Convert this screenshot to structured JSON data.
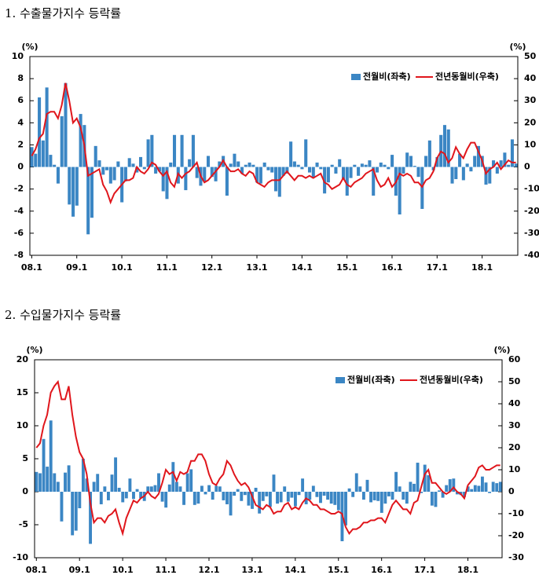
{
  "chart_data": [
    {
      "type": "bar_line",
      "title": "1. 수출물가지수 등락률",
      "y_label": "(%)",
      "y2_label": "(%)",
      "categories": [
        "08.1",
        null,
        null,
        null,
        null,
        null,
        null,
        null,
        null,
        null,
        null,
        null,
        "09.1",
        null,
        null,
        null,
        null,
        null,
        null,
        null,
        null,
        null,
        null,
        null,
        "10.1",
        null,
        null,
        null,
        null,
        null,
        null,
        null,
        null,
        null,
        null,
        null,
        "11.1",
        null,
        null,
        null,
        null,
        null,
        null,
        null,
        null,
        null,
        null,
        null,
        "12.1",
        null,
        null,
        null,
        null,
        null,
        null,
        null,
        null,
        null,
        null,
        null,
        "13.1",
        null,
        null,
        null,
        null,
        null,
        null,
        null,
        null,
        null,
        null,
        null,
        "14.1",
        null,
        null,
        null,
        null,
        null,
        null,
        null,
        null,
        null,
        null,
        null,
        "15.1",
        null,
        null,
        null,
        null,
        null,
        null,
        null,
        null,
        null,
        null,
        null,
        "16.1",
        null,
        null,
        null,
        null,
        null,
        null,
        null,
        null,
        null,
        null,
        null,
        "17.1",
        null,
        null,
        null,
        null,
        null,
        null,
        null,
        null,
        null,
        null,
        null,
        "18.1",
        null,
        null,
        null,
        null,
        null,
        null,
        null,
        null,
        null
      ],
      "series": [
        {
          "name": "전월비(좌축)",
          "color": "#3b86c4",
          "kind": "bar",
          "values": [
            1.8,
            1.2,
            6.3,
            2.4,
            7.2,
            1.1,
            0.2,
            -1.5,
            4.6,
            7.6,
            -3.4,
            -4.5,
            -3.5,
            4.8,
            3.8,
            -6.1,
            -4.6,
            1.9,
            0.6,
            -0.7,
            -0.3,
            -1.5,
            -1.2,
            0.5,
            -3.2,
            -1.3,
            0.8,
            0.3,
            -0.5,
            0.9,
            -0.2,
            2.5,
            2.9,
            -0.6,
            -0.4,
            -2.2,
            -2.9,
            0.4,
            2.9,
            -1.5,
            2.9,
            -2.1,
            0.7,
            2.9,
            -1.0,
            -1.7,
            -1.3,
            1.0,
            -0.9,
            -1.3,
            0.5,
            1.0,
            -2.6,
            0.3,
            1.2,
            0.5,
            -0.6,
            0.2,
            0.4,
            0.2,
            -1.4,
            -1.5,
            0.4,
            -0.3,
            -0.5,
            -2.2,
            -2.7,
            -0.8,
            -0.6,
            2.3,
            0.5,
            0.2,
            -0.2,
            2.5,
            -0.5,
            -1.0,
            0.4,
            -0.2,
            -2.4,
            -1.4,
            0.2,
            -0.6,
            0.7,
            -1.1,
            -2.6,
            -1.0,
            0.2,
            -0.8,
            0.3,
            0.2,
            0.6,
            -2.6,
            -0.5,
            0.4,
            0.2,
            -0.2,
            1.1,
            -2.6,
            -4.3,
            -0.6,
            1.3,
            1.0,
            0.1,
            -0.9,
            -3.8,
            1.0,
            2.4,
            -0.3,
            0.9,
            2.9,
            3.8,
            3.4,
            -1.5,
            -1.1,
            1.2,
            -1.2,
            0.3,
            -0.4,
            1.0,
            1.9,
            1.0,
            -1.6,
            -1.5,
            0.6,
            -0.6,
            0.6,
            1.3,
            0.2,
            2.5,
            0.3
          ]
        },
        {
          "name": "전년동월비(우축)",
          "color": "#e0161c",
          "kind": "line",
          "axis": "y2",
          "values": [
            5,
            8,
            13,
            15,
            24,
            25,
            25,
            22,
            28,
            38,
            30,
            20,
            22,
            18,
            10,
            -4,
            -3,
            -2,
            -1,
            -8,
            -11,
            -16,
            -12,
            -10,
            -8,
            -6,
            -6,
            -5,
            0,
            -2,
            -3,
            -1,
            2,
            1,
            -2,
            -4,
            -2,
            -7,
            -9,
            -3,
            -5,
            -3,
            -2,
            0,
            2,
            -4,
            -7,
            -6,
            -4,
            -2,
            0,
            3,
            0,
            -2,
            -2,
            -1,
            -3,
            -4,
            -2,
            -3,
            -7,
            -8,
            -9,
            -7,
            -6,
            -6,
            -6,
            -4,
            -2,
            -4,
            -6,
            -4,
            -4,
            -5,
            -4,
            -5,
            -4,
            -3,
            -7,
            -8,
            -10,
            -9,
            -8,
            -5,
            -8,
            -9,
            -7,
            -6,
            -5,
            -3,
            -2,
            -1,
            -6,
            -9,
            -8,
            -5,
            -9,
            -7,
            -3,
            -4,
            -3,
            -4,
            -7,
            -7,
            -9,
            -6,
            -5,
            -2,
            4,
            7,
            6,
            2,
            4,
            9,
            6,
            4,
            8,
            11,
            11,
            7,
            3,
            -3,
            -1,
            0,
            2,
            -1,
            1,
            3,
            2,
            2
          ]
        }
      ],
      "ylim": [
        -8,
        10
      ],
      "yticks": [
        -8,
        -6,
        -4,
        -2,
        0,
        2,
        4,
        6,
        8,
        10
      ],
      "y2lim": [
        -40,
        50
      ],
      "y2ticks": [
        -40,
        -30,
        -20,
        -10,
        0,
        10,
        20,
        30,
        40,
        50
      ],
      "legend": "top-right"
    },
    {
      "type": "bar_line",
      "title": "2. 수입물가지수 등락률",
      "y_label": "(%)",
      "y2_label": "(%)",
      "categories": [
        "08.1",
        null,
        null,
        null,
        null,
        null,
        null,
        null,
        null,
        null,
        null,
        null,
        "09.1",
        null,
        null,
        null,
        null,
        null,
        null,
        null,
        null,
        null,
        null,
        null,
        "10.1",
        null,
        null,
        null,
        null,
        null,
        null,
        null,
        null,
        null,
        null,
        null,
        "11.1",
        null,
        null,
        null,
        null,
        null,
        null,
        null,
        null,
        null,
        null,
        null,
        "12.1",
        null,
        null,
        null,
        null,
        null,
        null,
        null,
        null,
        null,
        null,
        null,
        "13.1",
        null,
        null,
        null,
        null,
        null,
        null,
        null,
        null,
        null,
        null,
        null,
        "14.1",
        null,
        null,
        null,
        null,
        null,
        null,
        null,
        null,
        null,
        null,
        null,
        "15.1",
        null,
        null,
        null,
        null,
        null,
        null,
        null,
        null,
        null,
        null,
        null,
        "16.1",
        null,
        null,
        null,
        null,
        null,
        null,
        null,
        null,
        null,
        null,
        null,
        "17.1",
        null,
        null,
        null,
        null,
        null,
        null,
        null,
        null,
        null,
        null,
        null,
        "18.1",
        null,
        null,
        null,
        null,
        null,
        null,
        null,
        null,
        null
      ],
      "series": [
        {
          "name": "전월비(좌축)",
          "color": "#3b86c4",
          "kind": "bar",
          "values": [
            3.0,
            2.8,
            8.0,
            3.8,
            10.8,
            2.8,
            1.5,
            -4.5,
            2.9,
            4.0,
            -6.6,
            -5.9,
            -2.5,
            5.0,
            2.0,
            -7.9,
            1.5,
            2.7,
            -1.9,
            0.8,
            -1.3,
            2.6,
            5.2,
            0.6,
            -1.6,
            -1.0,
            2.0,
            -1.1,
            0.4,
            -1.0,
            -1.4,
            0.8,
            0.8,
            1.0,
            2.8,
            -1.5,
            -2.4,
            1.1,
            4.5,
            1.5,
            0.8,
            -2.0,
            2.8,
            3.4,
            -2.0,
            -1.8,
            0.9,
            -0.4,
            1.0,
            -1.2,
            0.9,
            0.8,
            -1.3,
            -1.9,
            -3.6,
            -0.6,
            0.4,
            -1.4,
            -0.5,
            -2.1,
            -2.6,
            0.6,
            -3.3,
            -1.4,
            -0.7,
            -2.3,
            2.6,
            -1.8,
            -1.6,
            0.8,
            -1.5,
            -0.9,
            -2.2,
            -0.5,
            2.0,
            -1.9,
            -1.2,
            0.9,
            -0.8,
            -1.7,
            -0.6,
            -1.2,
            -1.8,
            -2.0,
            -2.8,
            -7.5,
            -5.1,
            0.5,
            -0.8,
            2.8,
            0.8,
            -1.2,
            1.8,
            -1.6,
            -1.3,
            -1.4,
            -3.2,
            -1.8,
            -0.7,
            -1.2,
            3.0,
            0.8,
            -1.2,
            -1.8,
            1.5,
            1.2,
            4.4,
            -0.2,
            4.1,
            2.5,
            -2.1,
            -2.3,
            0.2,
            -0.9,
            1.0,
            1.9,
            2.0,
            -0.4,
            -0.5,
            -0.8,
            0.8,
            0.4,
            1.0,
            0.9,
            2.3,
            1.4,
            -0.2,
            1.5,
            1.3,
            1.5
          ]
        },
        {
          "name": "전년동월비(우축)",
          "color": "#e0161c",
          "kind": "line",
          "axis": "y2",
          "values": [
            20,
            22,
            30,
            35,
            45,
            48,
            50,
            42,
            42,
            48,
            35,
            25,
            18,
            15,
            8,
            -5,
            -14,
            -12,
            -12,
            -14,
            -11,
            -10,
            -8,
            -14,
            -19,
            -12,
            -8,
            -4,
            -5,
            -3,
            -2,
            0,
            -2,
            -3,
            -1,
            4,
            10,
            8,
            9,
            5,
            9,
            8,
            9,
            14,
            14,
            17,
            17,
            14,
            8,
            4,
            3,
            6,
            8,
            14,
            12,
            8,
            5,
            3,
            4,
            2,
            -2,
            -6,
            -7,
            -8,
            -6,
            -7,
            -10,
            -9,
            -9,
            -6,
            -5,
            -8,
            -7,
            -8,
            -5,
            -3,
            -4,
            -6,
            -6,
            -8,
            -8,
            -9,
            -10,
            -10,
            -9,
            -10,
            -16,
            -19,
            -17,
            -17,
            -16,
            -14,
            -14,
            -13,
            -13,
            -12,
            -12,
            -14,
            -10,
            -6,
            -4,
            -6,
            -8,
            -8,
            -10,
            -5,
            -4,
            2,
            8,
            10,
            4,
            4,
            2,
            0,
            -1,
            0,
            2,
            0,
            -1,
            -3,
            3,
            5,
            7,
            11,
            12,
            10,
            10,
            11,
            12,
            12
          ]
        }
      ],
      "ylim": [
        -10,
        20
      ],
      "yticks": [
        -10,
        -5,
        0,
        5,
        10,
        15,
        20
      ],
      "y2lim": [
        -30,
        60
      ],
      "y2ticks": [
        -30,
        -20,
        -10,
        0,
        10,
        20,
        30,
        40,
        50,
        60
      ],
      "legend": "top-right"
    }
  ]
}
